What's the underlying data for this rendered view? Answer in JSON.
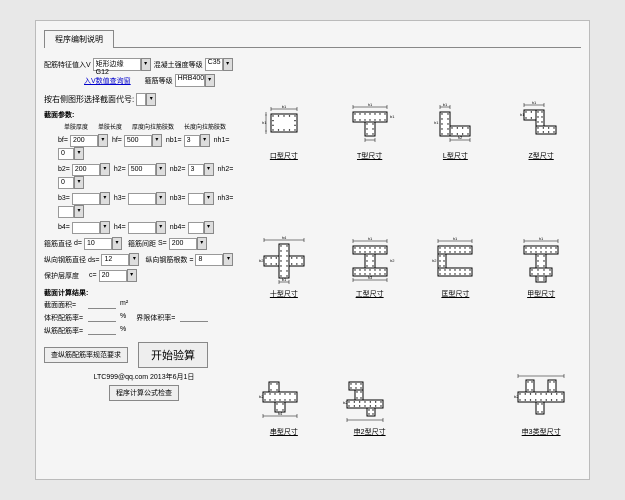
{
  "window": {
    "tab": "程序编制说明"
  },
  "top": {
    "l1": "配筋特征值入V",
    "sel1": "矩形边缘 G12",
    "l2": "混凝土强度等级",
    "sel2": "C35",
    "l3": "箍筋等级",
    "sel3": "HRB400",
    "link": "入V数值查询窗"
  },
  "sectionSel": {
    "label": "按右侧图形选择截面代号:",
    "value": ""
  },
  "params": {
    "header": "截面参数:",
    "cols": [
      "单肢厚度",
      "单肢长度",
      "厚度向拉筋肢数",
      "长度向拉筋肢数"
    ],
    "rows": [
      {
        "a": "bf=",
        "av": "200",
        "b": "hf=",
        "bv": "500",
        "c": "nb1=",
        "cv": "3",
        "d": "nh1=",
        "dv": "0"
      },
      {
        "a": "b2=",
        "av": "200",
        "b": "h2=",
        "bv": "500",
        "c": "nb2=",
        "cv": "3",
        "d": "nh2=",
        "dv": "0"
      },
      {
        "a": "b3=",
        "av": "",
        "b": "h3=",
        "bv": "",
        "c": "nb3=",
        "cv": "",
        "d": "nh3=",
        "dv": ""
      },
      {
        "a": "b4=",
        "av": "",
        "b": "h4=",
        "bv": "",
        "c": "nb4=",
        "cv": "",
        "d": ""
      }
    ],
    "r5": {
      "a": "箍筋直径",
      "av": "d=",
      "avv": "10",
      "b": "箍筋间距",
      "bv": "S=",
      "bvv": "200"
    },
    "r6": {
      "a": "纵向钢筋直径 ds=",
      "av": "12",
      "b": "纵向钢筋根数 =",
      "bv": "8"
    },
    "r7": {
      "a": "保护层厚度",
      "b": "c=",
      "bv": "20"
    }
  },
  "results": {
    "header": "截面计算结果:",
    "r1": {
      "l": "截面面积=",
      "u": "m²"
    },
    "r2": {
      "l": "体积配筋率=",
      "u": "%",
      "l2": "界限体积率="
    },
    "r3": {
      "l": "纵筋配筋率=",
      "u": "%"
    }
  },
  "buttons": {
    "req": "查纵筋配筋率规范要求",
    "calc": "开始验算",
    "formula": "程序计算公式检查"
  },
  "footer": "LTC999@qq.com 2013年6月1日",
  "shapes": [
    {
      "label": "口型尺寸"
    },
    {
      "label": "T型尺寸"
    },
    {
      "label": "L型尺寸"
    },
    {
      "label": "Z型尺寸"
    },
    {
      "label": "十型尺寸"
    },
    {
      "label": "工型尺寸"
    },
    {
      "label": "匡型尺寸"
    },
    {
      "label": "甲型尺寸"
    },
    {
      "label": "串型尺寸"
    },
    {
      "label": "申2型尺寸"
    },
    {
      "label": "",
      "hidden": true
    },
    {
      "label": "申3类型尺寸"
    }
  ]
}
